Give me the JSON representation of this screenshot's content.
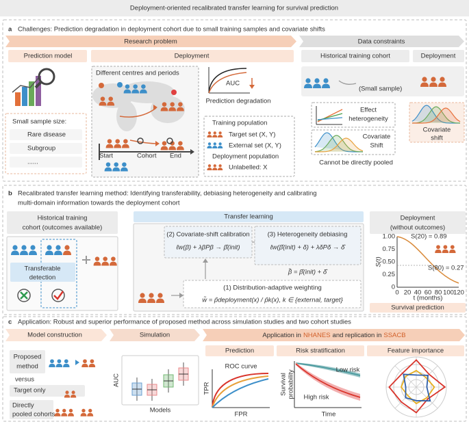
{
  "title": "Deployment-oriented recalibrated transfer learning for survival prediction",
  "panel_a": {
    "label": "a",
    "heading": "Challenges: Prediction degradation in deployment cohort due to small training samples and covariate shifts",
    "research_problem": "Research problem",
    "prediction_model": "Prediction model",
    "deployment": "Deployment",
    "data_constraints": "Data constraints",
    "historical_training_cohort": "Historical training cohort",
    "deployment_right": "Deployment",
    "small_sample_title": "Small sample size:",
    "small_sample_items": [
      "Rare disease",
      "Subgroup",
      "......"
    ],
    "map_title": "Different centres and periods",
    "auc": "AUC",
    "prediction_degradation": "Prediction degradation",
    "timeline": [
      "Start",
      "Cohort",
      "End"
    ],
    "training_population": "Training  population",
    "target_set": "Target set (X, Y)",
    "external_set": "External set (X, Y)",
    "deployment_population": "Deployment population",
    "unlabelled": "Unlabelled: X",
    "small_sample_note": "(Small sample)",
    "effect_heterogeneity": [
      "Effect",
      "heterogeneity"
    ],
    "covariate_shift_box": [
      "Covariate",
      "Shift"
    ],
    "cannot_pool": "Cannot be directly pooled",
    "covariate_shift": [
      "Covariate",
      "shift"
    ]
  },
  "panel_b": {
    "label": "b",
    "heading": [
      "Recalibrated transfer learning method: Identifying transferability, debiasing heterogeneity and calibrating",
      "multi-domain information towards the deployment cohort"
    ],
    "historical_cohort": [
      "Historical training",
      "cohort (outcomes available)"
    ],
    "transferable_detection": [
      "Transferable",
      "detection"
    ],
    "transfer_learning": "Transfer learning",
    "step2_title": "(2) Covariate-shift calibration",
    "step2_formula": "ℓw(β) + λβPβ → β̂(init)",
    "step3_title": "(3) Heterogeneity debiasing",
    "step3_formula": "ℓw(β̂(init) + δ) + λδPδ → δ̂",
    "combined_formula": "β̃ = β̂(init) + δ̂",
    "step1_title": "(1) Distribution-adaptive weighting",
    "step1_formula": "w̃ = p̂deployment(x) / p̂k(x),  k ∈ {external, target}",
    "deployment": [
      "Deployment",
      "(without outcomes)"
    ],
    "s20": "S(20) = 0.89",
    "s80": "S(80) = 0.27",
    "y_label": "S(t)",
    "y_ticks": [
      "1.00",
      "0.75",
      "0.50",
      "0.25",
      "0"
    ],
    "x_ticks": [
      "0",
      "20",
      "40",
      "60",
      "80",
      "100",
      "120"
    ],
    "x_label": "t (months)",
    "survival_prediction": "Survival prediction"
  },
  "panel_c": {
    "label": "c",
    "heading": "Application: Robust and superior performance of proposed method across simulation studies and two cohort studies",
    "model_construction": "Model construction",
    "simulation": "Simulation",
    "application": {
      "before": "Application in",
      "cohort1": "NHANES",
      "middle": "and replication in",
      "cohort2": "SSACB"
    },
    "proposed_method": [
      "Proposed",
      "method"
    ],
    "versus": "versus",
    "target_only": "Target only",
    "pooled": [
      "Directly",
      "pooled cohorts"
    ],
    "auc": "AUC",
    "models": "Models",
    "prediction": "Prediction",
    "risk_stratification": "Risk stratification",
    "feature_importance": "Feature importance",
    "roc_curve": "ROC curve",
    "tpr": "TPR",
    "fpr": "FPR",
    "low_risk": "Low risk",
    "high_risk": "High risk",
    "survival_probability": [
      "Survival",
      "probability"
    ],
    "time": "Time"
  }
}
